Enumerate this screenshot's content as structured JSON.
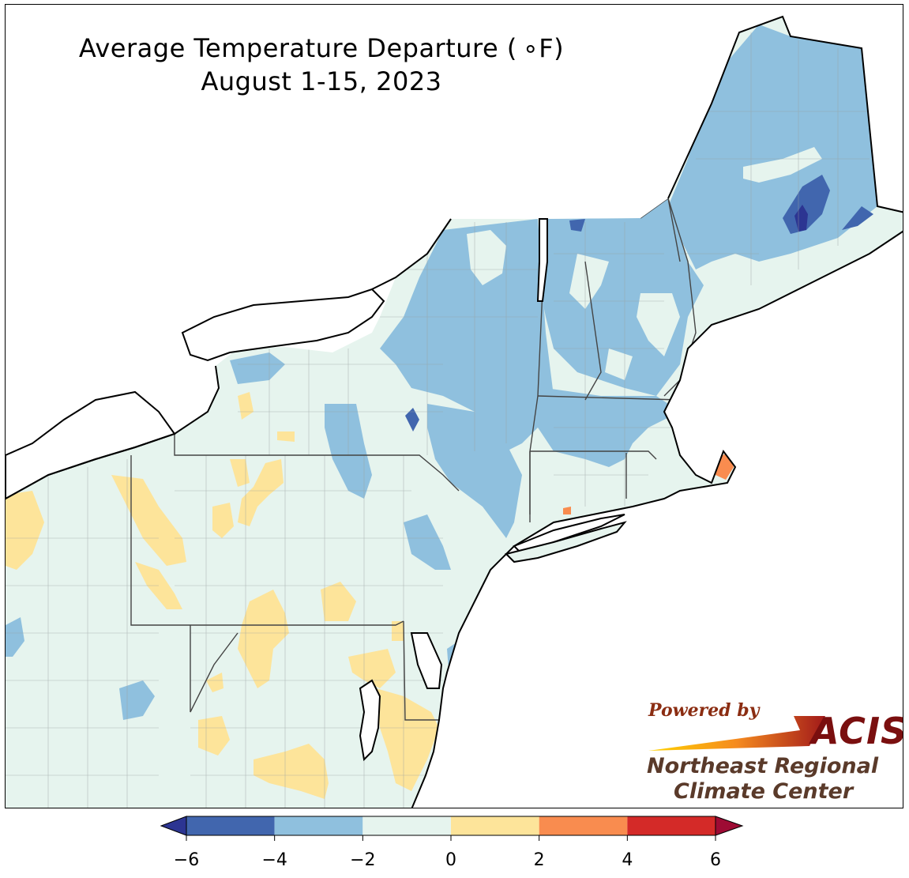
{
  "title": {
    "line1": "Average Temperature Departure ( ∘F)",
    "line2": "August 1-15, 2023"
  },
  "logo": {
    "powered_by": "Powered by",
    "acis": "ACIS",
    "org_line1": "Northeast Regional",
    "org_line2": "Climate Center"
  },
  "colorbar": {
    "bins": [
      {
        "from": -6,
        "to": -4,
        "color": "#4166ae"
      },
      {
        "from": -4,
        "to": -2,
        "color": "#8fc0de"
      },
      {
        "from": -2,
        "to": 0,
        "color": "#e6f4ee"
      },
      {
        "from": 0,
        "to": 2,
        "color": "#fde49a"
      },
      {
        "from": 2,
        "to": 4,
        "color": "#f98c4f"
      },
      {
        "from": 4,
        "to": 6,
        "color": "#d42a28"
      }
    ],
    "under_color": "#2c3592",
    "over_color": "#9e0b34",
    "ticks": [
      "−6",
      "−4",
      "−2",
      "0",
      "2",
      "4",
      "6"
    ]
  },
  "map_colors": {
    "land_base": "#e6f4ee",
    "cool": "#8fc0de",
    "cooler": "#4166ae",
    "coolest": "#2c3592",
    "warm": "#fde49a",
    "hot": "#f98c4f",
    "water": "#ffffff"
  }
}
